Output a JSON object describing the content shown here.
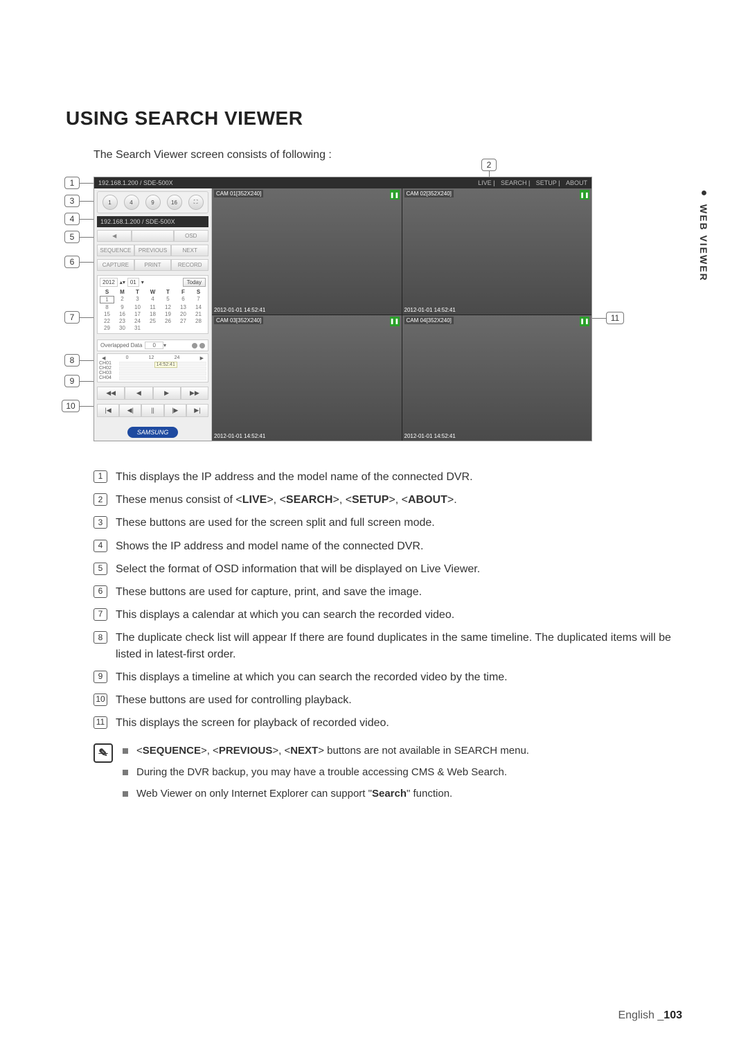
{
  "side_tab_bullet": "●",
  "side_tab_text": "WEB VIEWER",
  "section_title": "USING SEARCH VIEWER",
  "intro_text": "The Search Viewer screen consists of following :",
  "footer_lang": "English",
  "footer_sep": "_",
  "footer_page": "103",
  "app": {
    "title": "192.168.1.200 / SDE-500X",
    "tabs": [
      "LIVE",
      "SEARCH",
      "SETUP",
      "ABOUT"
    ],
    "split_buttons": [
      "1",
      "4",
      "9",
      "16",
      "⛶"
    ],
    "dvr_label": "192.168.1.200  / SDE-500X",
    "osd_buttons": [
      "◀",
      "",
      "OSD"
    ],
    "nav_buttons": [
      "SEQUENCE",
      "PREVIOUS",
      "NEXT"
    ],
    "cap_buttons": [
      "CAPTURE",
      "PRINT",
      "RECORD"
    ],
    "calendar": {
      "year": "2012",
      "month": "01",
      "today_label": "Today",
      "day_headers": [
        "S",
        "M",
        "T",
        "W",
        "T",
        "F",
        "S"
      ],
      "weeks": [
        [
          "1",
          "2",
          "3",
          "4",
          "5",
          "6",
          "7"
        ],
        [
          "8",
          "9",
          "10",
          "11",
          "12",
          "13",
          "14"
        ],
        [
          "15",
          "16",
          "17",
          "18",
          "19",
          "20",
          "21"
        ],
        [
          "22",
          "23",
          "24",
          "25",
          "26",
          "27",
          "28"
        ],
        [
          "29",
          "30",
          "31",
          "",
          "",
          "",
          ""
        ]
      ],
      "selected_index": 0
    },
    "overlap_label": "Overlapped Data",
    "overlap_value": "0",
    "timeline": {
      "scale": [
        "0",
        "12",
        "24"
      ],
      "channels": [
        "CH01",
        "CH02",
        "CH03",
        "CH04"
      ],
      "tooltip": "14:52:41"
    },
    "playback_row1": [
      "◀◀",
      "◀",
      "▶",
      "▶▶"
    ],
    "playback_row2": [
      "|◀",
      "◀|",
      "||",
      "|▶",
      "▶|"
    ],
    "logo": "SAMSUNG",
    "cams": [
      {
        "label": "CAM 01[352X240]",
        "ts": "2012-01-01 14:52:41"
      },
      {
        "label": "CAM 02[352X240]",
        "ts": "2012-01-01 14:52:41"
      },
      {
        "label": "CAM 03[352X240]",
        "ts": "2012-01-01 14:52:41"
      },
      {
        "label": "CAM 04[352X240]",
        "ts": "2012-01-01 14:52:41"
      }
    ]
  },
  "callouts": {
    "c1": "1",
    "c2": "2",
    "c3": "3",
    "c4": "4",
    "c5": "5",
    "c6": "6",
    "c7": "7",
    "c8": "8",
    "c9": "9",
    "c10": "10",
    "c11": "11"
  },
  "descriptions": [
    {
      "n": "1",
      "pre": "This displays the IP address and the model name of the connected DVR."
    },
    {
      "n": "2",
      "pre": "These menus consist of <",
      "bolds": [
        "LIVE",
        "SEARCH",
        "SETUP",
        "ABOUT"
      ],
      "joiner": ">, <",
      "post": ">."
    },
    {
      "n": "3",
      "pre": "These buttons are used for the screen split and full screen mode."
    },
    {
      "n": "4",
      "pre": "Shows the IP address and model name of the connected DVR."
    },
    {
      "n": "5",
      "pre": "Select the format of OSD information that will be displayed on Live Viewer."
    },
    {
      "n": "6",
      "pre": "These buttons are used for capture, print, and save the image."
    },
    {
      "n": "7",
      "pre": "This displays a calendar at which you can search the recorded video."
    },
    {
      "n": "8",
      "pre": "The duplicate check list will appear If there are found duplicates in the same timeline. The duplicated items will be listed in latest-first order."
    },
    {
      "n": "9",
      "pre": "This displays a timeline at which you can search the recorded video by the time."
    },
    {
      "n": "10",
      "pre": "These buttons are used for controlling playback."
    },
    {
      "n": "11",
      "pre": "This displays the screen for playback of recorded video."
    }
  ],
  "notes": [
    {
      "pre": "<",
      "bolds": [
        "SEQUENCE",
        "PREVIOUS",
        "NEXT"
      ],
      "joiner": ">, <",
      "post": "> buttons are not available in SEARCH menu."
    },
    {
      "text": "During the DVR backup, you may have a trouble accessing CMS & Web Search."
    },
    {
      "pre": "Web Viewer on only Internet Explorer can support \"",
      "bold1": "Search",
      "post": "\" function."
    }
  ],
  "colors": {
    "titlebar_bg": "#2d2d2d",
    "sidebar_bg": "#eeeeee",
    "logo_bg": "#1e4aa0",
    "pause_bg": "#2aa02a"
  }
}
